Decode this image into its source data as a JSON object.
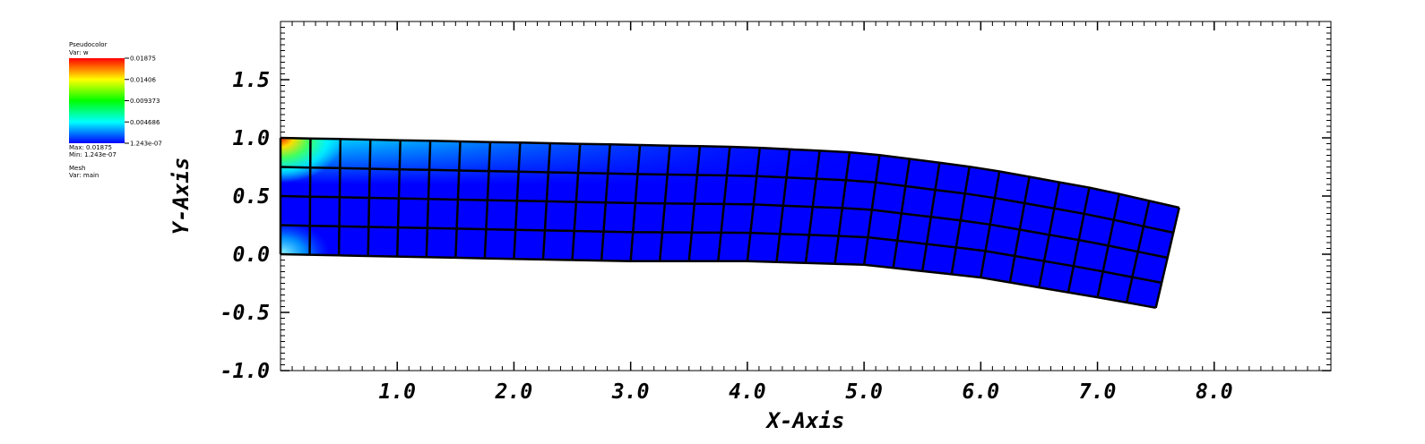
{
  "legend": {
    "plot_name": "Pseudocolor",
    "var_line": "Var: w",
    "color_ticks": [
      "0.01875",
      "0.01406",
      "0.009373",
      "0.004686",
      "1.243e-07"
    ],
    "max_line": "Max: 0.01875",
    "min_line": "Min: 1.243e-07",
    "mesh_name": "Mesh",
    "mesh_var_line": "Var: main",
    "colors": [
      "#ff0000",
      "#ffff00",
      "#00ff00",
      "#00ffff",
      "#0000ff"
    ]
  },
  "chart_data": {
    "type": "heatmap",
    "title": "",
    "xlabel": "X-Axis",
    "ylabel": "Y-Axis",
    "xlim": [
      0,
      9.0
    ],
    "ylim": [
      -1.0,
      2.0
    ],
    "x_ticks": [
      1.0,
      2.0,
      3.0,
      4.0,
      5.0,
      6.0,
      7.0,
      8.0
    ],
    "x_tick_labels": [
      "1.0",
      "2.0",
      "3.0",
      "4.0",
      "5.0",
      "6.0",
      "7.0",
      "8.0"
    ],
    "y_ticks": [
      -1.0,
      -0.5,
      0.0,
      0.5,
      1.0,
      1.5
    ],
    "y_tick_labels": [
      "-1.0",
      "-0.5",
      "0.0",
      "0.5",
      "1.0",
      "1.5"
    ],
    "variable": "w",
    "value_range": [
      1.243e-07,
      0.01875
    ],
    "mesh": {
      "cols": 30,
      "rows": 4,
      "edges": {
        "top": [
          [
            0.0,
            1.0
          ],
          [
            1.0,
            0.98
          ],
          [
            2.0,
            0.96
          ],
          [
            3.0,
            0.94
          ],
          [
            4.0,
            0.92
          ],
          [
            5.0,
            0.87
          ],
          [
            6.0,
            0.74
          ],
          [
            7.0,
            0.56
          ],
          [
            7.7,
            0.4
          ]
        ],
        "bottom": [
          [
            0.0,
            0.0
          ],
          [
            1.0,
            -0.02
          ],
          [
            2.0,
            -0.04
          ],
          [
            3.0,
            -0.06
          ],
          [
            4.0,
            -0.06
          ],
          [
            5.0,
            -0.09
          ],
          [
            6.0,
            -0.2
          ],
          [
            7.0,
            -0.37
          ],
          [
            7.5,
            -0.46
          ]
        ]
      },
      "hot_spots": [
        {
          "x": 0.0,
          "y": 1.0,
          "value": 0.01875
        },
        {
          "x": 0.0,
          "y": 0.0,
          "value": 0.0075
        }
      ]
    }
  }
}
